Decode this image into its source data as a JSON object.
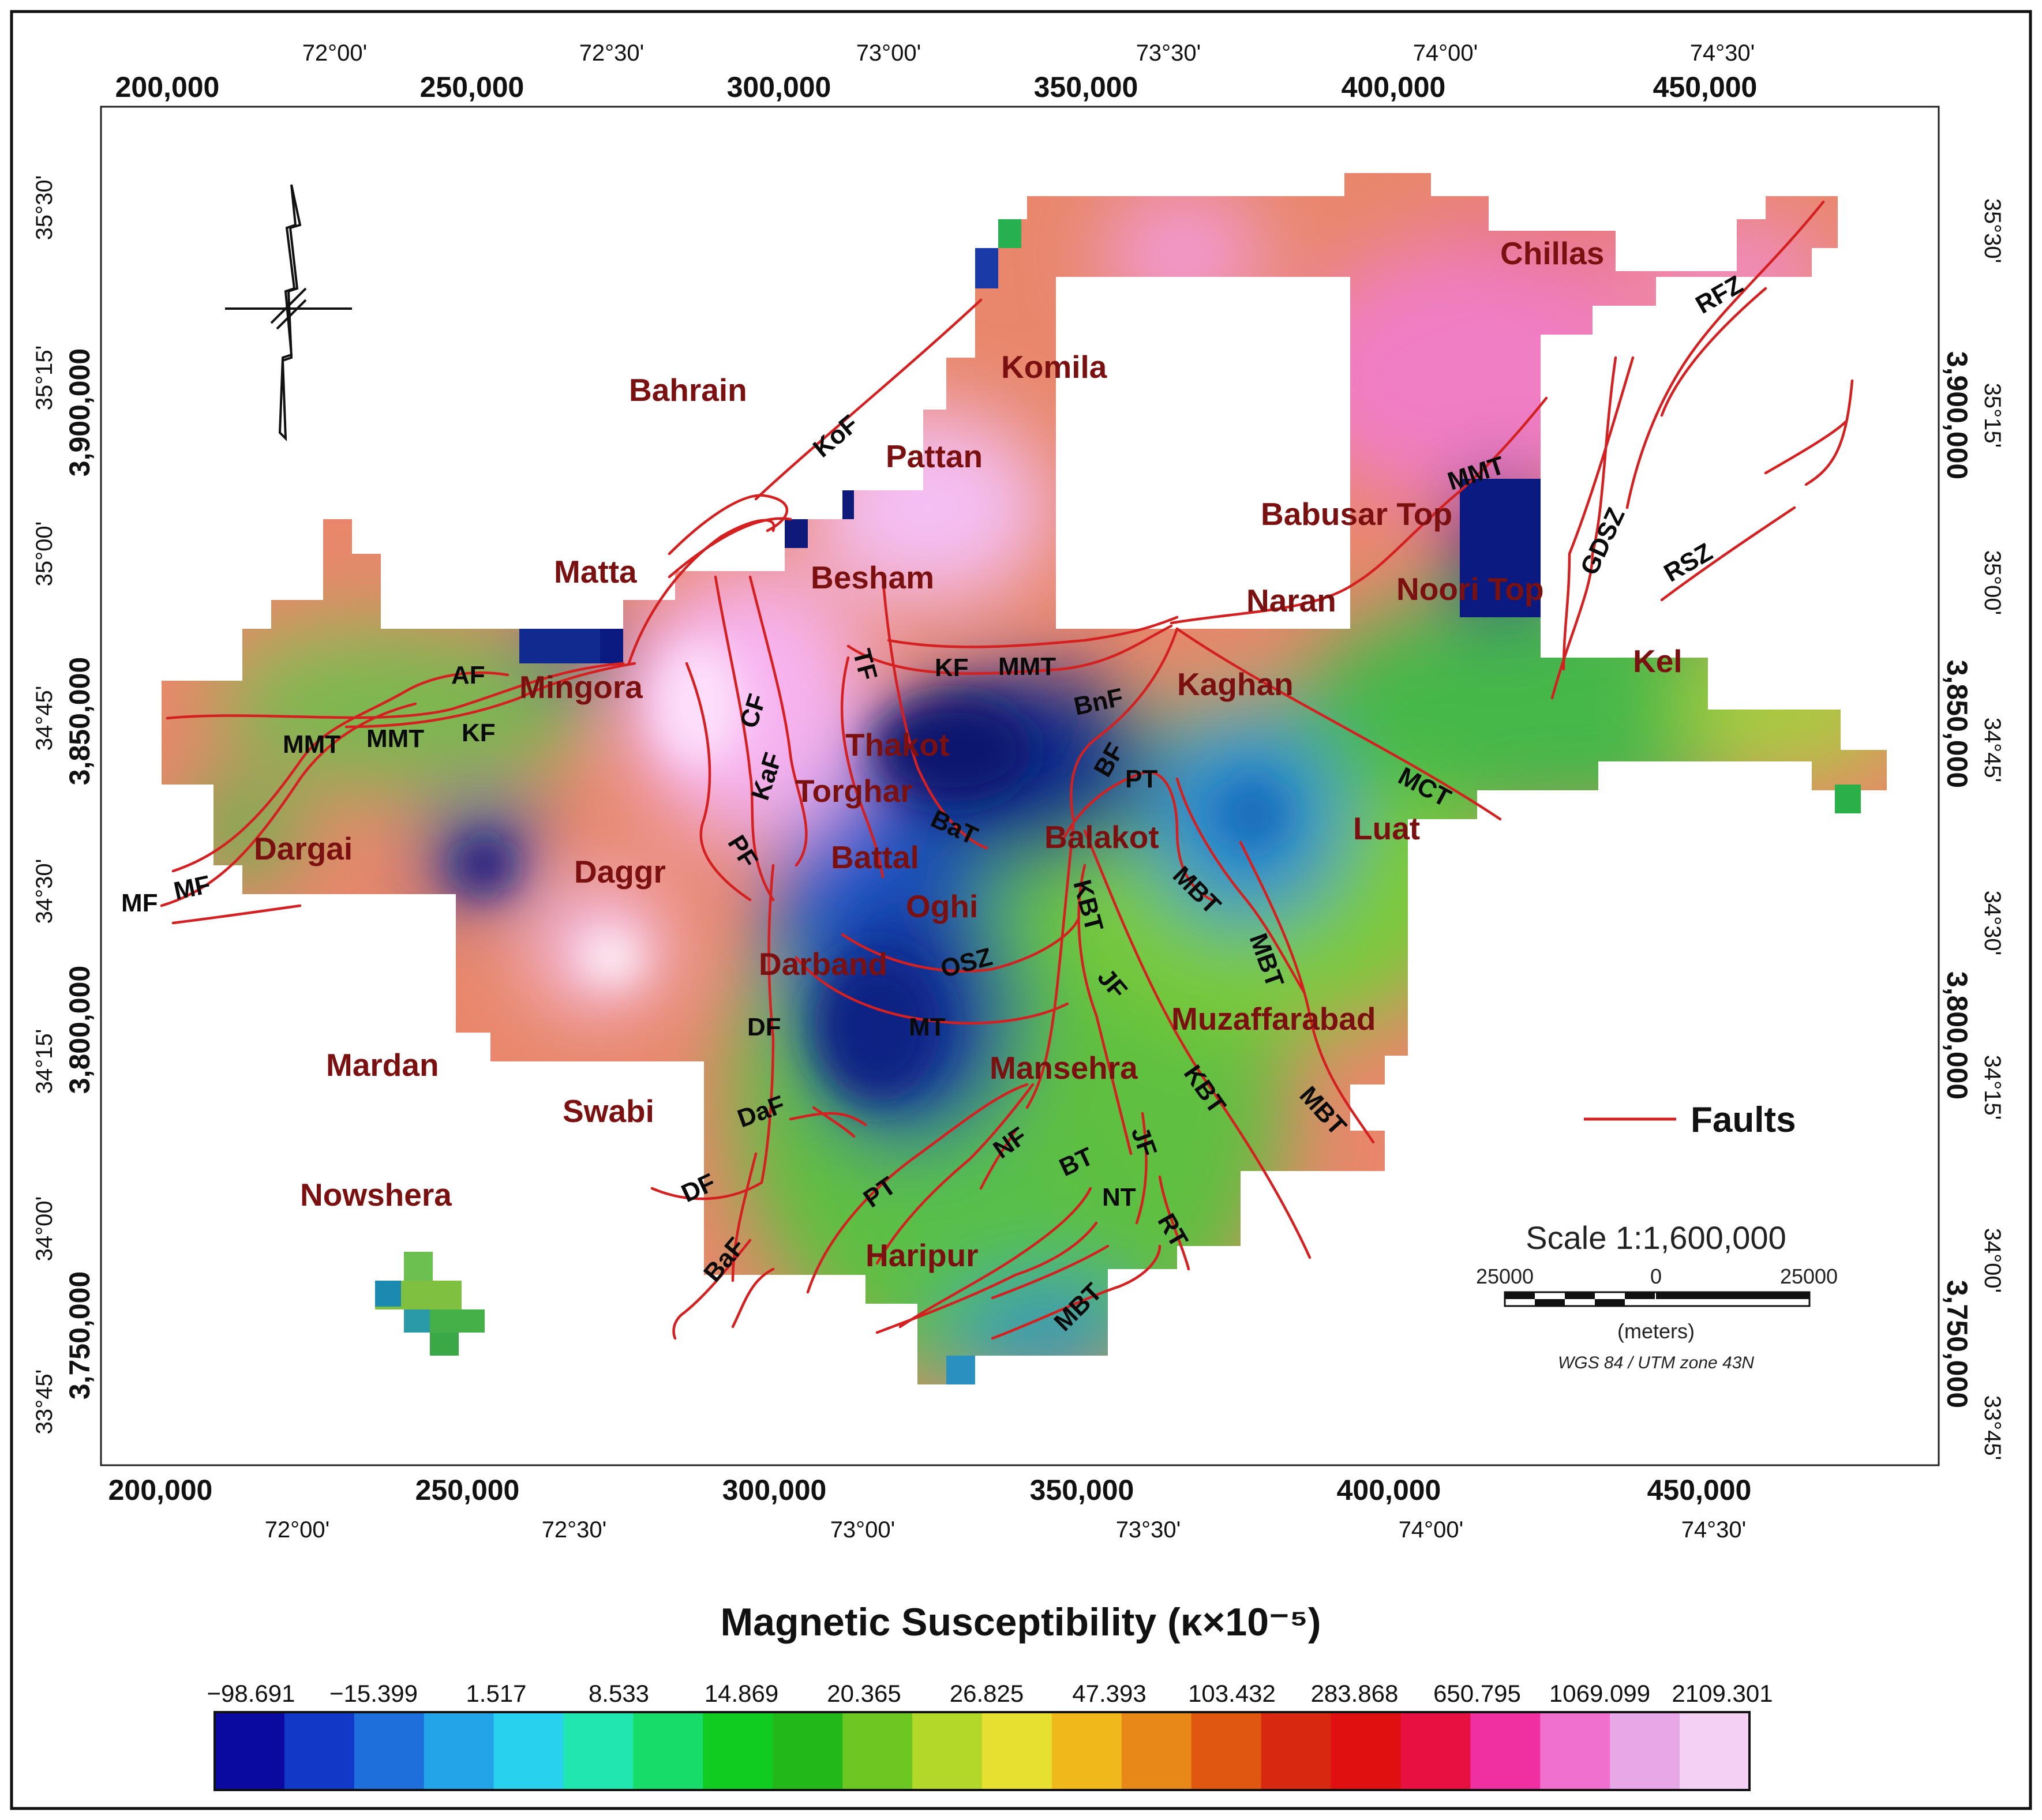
{
  "map": {
    "top_ticks_utm": [
      "200,000",
      "250,000",
      "300,000",
      "350,000",
      "400,000",
      "450,000"
    ],
    "top_ticks_deg": [
      "72°00'",
      "72°30'",
      "73°00'",
      "73°30'",
      "74°00'",
      "74°30'"
    ],
    "bottom_ticks_utm": [
      "200,000",
      "250,000",
      "300,000",
      "350,000",
      "400,000",
      "450,000"
    ],
    "bottom_ticks_deg": [
      "72°00'",
      "72°30'",
      "73°00'",
      "73°30'",
      "74°00'",
      "74°30'"
    ],
    "left_ticks_deg": [
      "35°30'",
      "35°15'",
      "35°00'",
      "34°45'",
      "34°30'",
      "34°15'",
      "34°00'",
      "33°45'"
    ],
    "left_ticks_utm": [
      "3,900,000",
      "3,850,000",
      "3,800,000",
      "3,750,000"
    ],
    "right_ticks_deg": [
      "35°30'",
      "35°15'",
      "35°00'",
      "34°45'",
      "34°30'",
      "34°15'",
      "34°00'",
      "33°45'"
    ],
    "right_ticks_utm": [
      "3,900,000",
      "3,850,000",
      "3,800,000",
      "3,750,000"
    ],
    "towns": [
      "Chillas",
      "Komila",
      "Bahrain",
      "Pattan",
      "Babusar Top",
      "Matta",
      "Besham",
      "Naran",
      "Noori Top",
      "Kel",
      "Mingora",
      "Kaghan",
      "Thakot",
      "Torghar",
      "Balakot",
      "Luat",
      "Dargai",
      "Battal",
      "Daggr",
      "Oghi",
      "Darband",
      "Muzaffarabad",
      "Mardan",
      "Mansehra",
      "Swabi",
      "Nowshera",
      "Haripur"
    ],
    "faults": [
      "RFZ",
      "MMT",
      "GDSZ",
      "RSZ",
      "KoF",
      "AF",
      "KF",
      "MMT",
      "BnF",
      "MMT",
      "MMT",
      "KF",
      "CF",
      "TF",
      "KaF",
      "BF",
      "PT",
      "MCT",
      "BaT",
      "PF",
      "MF",
      "MF",
      "KBT",
      "MBT",
      "MBT",
      "OSZ",
      "JF",
      "MT",
      "DF",
      "MBT",
      "KBT",
      "DaF",
      "NF",
      "DF",
      "JF",
      "BT",
      "PT",
      "NT",
      "RT",
      "BaF",
      "MBT"
    ],
    "legend_label": "Faults",
    "scale": {
      "title": "Scale 1:1,600,000",
      "left_label": "25000",
      "center_label": "0",
      "right_label": "25000",
      "unit": "(meters)",
      "projection": "WGS 84 / UTM zone 43N"
    }
  },
  "colorbar": {
    "title": "Magnetic Susceptibility (κ×10⁻⁵)",
    "ticks": [
      "−98.691",
      "−15.399",
      "1.517",
      "8.533",
      "14.869",
      "20.365",
      "26.825",
      "47.393",
      "103.432",
      "283.868",
      "650.795",
      "1069.099",
      "2109.301"
    ],
    "colors": [
      "#0a0aa0",
      "#1238c8",
      "#1e6fdc",
      "#23a3e8",
      "#28d2ee",
      "#20e6b0",
      "#18dc6a",
      "#10cc20",
      "#22b81a",
      "#6cc820",
      "#b4d82a",
      "#e8e030",
      "#f0b81a",
      "#e88818",
      "#e05810",
      "#d82810",
      "#e01010",
      "#e81040",
      "#f030a0",
      "#f070d0",
      "#e8a8e8",
      "#f4d0f4"
    ]
  },
  "colors": {
    "fault": "#d42020",
    "town_label": "#7a1010",
    "white_mask": "#ffffff"
  }
}
